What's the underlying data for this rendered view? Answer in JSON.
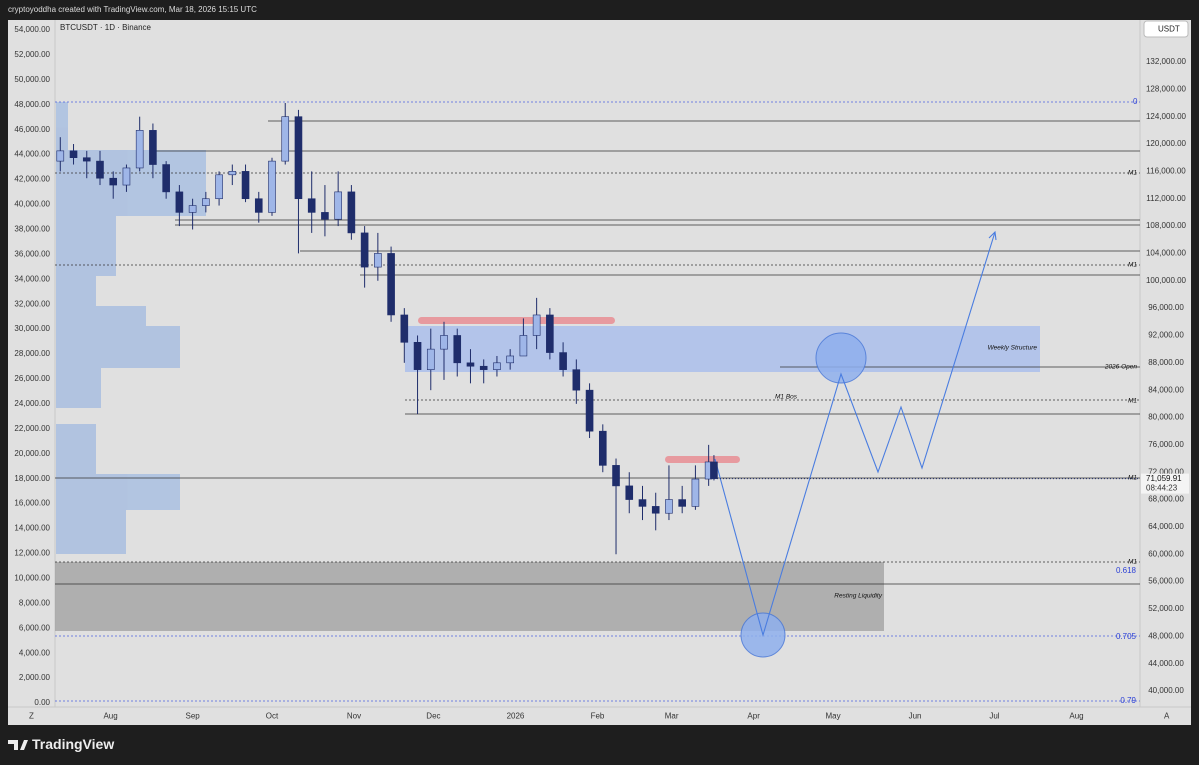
{
  "header": {
    "caption": "cryptoyoddha created with TradingView.com, Mar 18, 2026 15:15 UTC"
  },
  "footer": {
    "brand": "TradingView",
    "left_button": "Z",
    "right_button": "A"
  },
  "chart_data": {
    "type": "candlestick",
    "title": "BTCUSDT · 1D · Binance",
    "currency": "USDT",
    "x": [
      -19,
      -14,
      -9,
      -4,
      1,
      6,
      11,
      16,
      21,
      26,
      31,
      36,
      41,
      46,
      51,
      56,
      61,
      66,
      71,
      76,
      81,
      86,
      91,
      96,
      101,
      106,
      111,
      116,
      121,
      126,
      131,
      136,
      141,
      146,
      151,
      156,
      161,
      166,
      171,
      176,
      181,
      186,
      191,
      196,
      201,
      206,
      211,
      216,
      221,
      226,
      228
    ],
    "open": [
      117500,
      119000,
      118000,
      117500,
      115000,
      114000,
      116500,
      122000,
      117000,
      113000,
      110000,
      111000,
      112000,
      115500,
      116000,
      112000,
      110000,
      117500,
      124000,
      112000,
      110000,
      109000,
      113000,
      107000,
      102000,
      104000,
      95000,
      91000,
      87000,
      90000,
      92000,
      88000,
      87500,
      87000,
      88000,
      89000,
      92000,
      95000,
      89500,
      87000,
      84000,
      78000,
      73000,
      70000,
      68000,
      67000,
      66000,
      68000,
      67000,
      71000,
      73500
    ],
    "high": [
      121000,
      120000,
      119000,
      119000,
      116000,
      117000,
      124000,
      123000,
      117500,
      114000,
      112000,
      113000,
      116000,
      117000,
      117000,
      113000,
      118000,
      126000,
      125000,
      116000,
      114000,
      116000,
      114000,
      108000,
      107000,
      105000,
      96000,
      92000,
      93000,
      94000,
      93000,
      90000,
      88500,
      89000,
      90000,
      94500,
      97500,
      96000,
      91000,
      88500,
      85000,
      79000,
      74000,
      72000,
      70000,
      69000,
      73000,
      70000,
      73000,
      76000,
      74500
    ],
    "low": [
      116000,
      117000,
      115000,
      114000,
      112000,
      113000,
      116000,
      115000,
      112000,
      108000,
      107500,
      110000,
      111000,
      114000,
      111500,
      108500,
      109500,
      117000,
      104000,
      107000,
      106500,
      108000,
      106000,
      99000,
      100000,
      94000,
      88000,
      80500,
      84000,
      85500,
      86000,
      85000,
      85000,
      86000,
      87000,
      89000,
      90000,
      88500,
      86000,
      82000,
      77000,
      72000,
      60000,
      66000,
      65000,
      63500,
      65000,
      66000,
      66500,
      70000,
      70800
    ],
    "close": [
      119000,
      118000,
      117500,
      115000,
      114000,
      116500,
      122000,
      117000,
      113000,
      110000,
      111000,
      112000,
      115500,
      116000,
      112000,
      110000,
      117500,
      124000,
      112000,
      110000,
      109000,
      113000,
      107000,
      102000,
      104000,
      95000,
      91000,
      87000,
      90000,
      92000,
      88000,
      87500,
      87000,
      88000,
      89000,
      92000,
      95000,
      89500,
      87000,
      84000,
      78000,
      73000,
      70000,
      68000,
      67000,
      66000,
      68000,
      67000,
      71000,
      73500,
      71059.91
    ],
    "up_color": "#9fb6e8",
    "down_color": "#1f2d6b",
    "last_price": {
      "value": 71059.91,
      "label": "71,059.91"
    },
    "countdown": "08:44:23",
    "xlim": [
      -21,
      389
    ],
    "xticks": [
      {
        "value": 0,
        "label": "Aug"
      },
      {
        "value": 31,
        "label": "Sep"
      },
      {
        "value": 61,
        "label": "Oct"
      },
      {
        "value": 92,
        "label": "Nov"
      },
      {
        "value": 122,
        "label": "Dec"
      },
      {
        "value": 153,
        "label": "2026"
      },
      {
        "value": 184,
        "label": "Feb"
      },
      {
        "value": 212,
        "label": "Mar"
      },
      {
        "value": 243,
        "label": "Apr"
      },
      {
        "value": 273,
        "label": "May"
      },
      {
        "value": 304,
        "label": "Jun"
      },
      {
        "value": 334,
        "label": "Jul"
      },
      {
        "value": 365,
        "label": "Aug"
      }
    ],
    "ylim": [
      37660,
      138140
    ],
    "yticks": [
      {
        "value": 40000,
        "label": "40,000.00"
      },
      {
        "value": 44000,
        "label": "44,000.00"
      },
      {
        "value": 48000,
        "label": "48,000.00"
      },
      {
        "value": 52000,
        "label": "52,000.00"
      },
      {
        "value": 56000,
        "label": "56,000.00"
      },
      {
        "value": 60000,
        "label": "60,000.00"
      },
      {
        "value": 64000,
        "label": "64,000.00"
      },
      {
        "value": 68000,
        "label": "68,000.00"
      },
      {
        "value": 72000,
        "label": "72,000.00"
      },
      {
        "value": 76000,
        "label": "76,000.00"
      },
      {
        "value": 80000,
        "label": "80,000.00"
      },
      {
        "value": 84000,
        "label": "84,000.00"
      },
      {
        "value": 88000,
        "label": "88,000.00"
      },
      {
        "value": 92000,
        "label": "92,000.00"
      },
      {
        "value": 96000,
        "label": "96,000.00"
      },
      {
        "value": 100000,
        "label": "100,000.00"
      },
      {
        "value": 104000,
        "label": "104,000.00"
      },
      {
        "value": 108000,
        "label": "108,000.00"
      },
      {
        "value": 112000,
        "label": "112,000.00"
      },
      {
        "value": 116000,
        "label": "116,000.00"
      },
      {
        "value": 120000,
        "label": "120,000.00"
      },
      {
        "value": 124000,
        "label": "124,000.00"
      },
      {
        "value": 128000,
        "label": "128,000.00"
      },
      {
        "value": 132000,
        "label": "132,000.00"
      }
    ],
    "y2lim": [
      -320,
      54800
    ],
    "y2ticks": [
      {
        "value": 0,
        "label": "0.00"
      },
      {
        "value": 2000,
        "label": "2,000.00"
      },
      {
        "value": 4000,
        "label": "4,000.00"
      },
      {
        "value": 6000,
        "label": "6,000.00"
      },
      {
        "value": 8000,
        "label": "8,000.00"
      },
      {
        "value": 10000,
        "label": "10,000.00"
      },
      {
        "value": 12000,
        "label": "12,000.00"
      },
      {
        "value": 14000,
        "label": "14,000.00"
      },
      {
        "value": 16000,
        "label": "16,000.00"
      },
      {
        "value": 18000,
        "label": "18,000.00"
      },
      {
        "value": 20000,
        "label": "20,000.00"
      },
      {
        "value": 22000,
        "label": "22,000.00"
      },
      {
        "value": 24000,
        "label": "24,000.00"
      },
      {
        "value": 26000,
        "label": "26,000.00"
      },
      {
        "value": 28000,
        "label": "28,000.00"
      },
      {
        "value": 30000,
        "label": "30,000.00"
      },
      {
        "value": 32000,
        "label": "32,000.00"
      },
      {
        "value": 34000,
        "label": "34,000.00"
      },
      {
        "value": 36000,
        "label": "36,000.00"
      },
      {
        "value": 38000,
        "label": "38,000.00"
      },
      {
        "value": 40000,
        "label": "40,000.00"
      },
      {
        "value": 42000,
        "label": "42,000.00"
      },
      {
        "value": 44000,
        "label": "44,000.00"
      },
      {
        "value": 46000,
        "label": "46,000.00"
      },
      {
        "value": 48000,
        "label": "48,000.00"
      },
      {
        "value": 50000,
        "label": "50,000.00"
      },
      {
        "value": 52000,
        "label": "52,000.00"
      },
      {
        "value": 54000,
        "label": "54,000.00"
      }
    ],
    "grid": false,
    "annotations": [
      "0",
      "M1",
      "M1",
      "M1 Bos",
      "M1",
      "M1",
      "M1",
      "Weekly Structure",
      "2026 Open",
      "0.618",
      "0.705",
      "0.79",
      "Resting Liquidity"
    ]
  }
}
